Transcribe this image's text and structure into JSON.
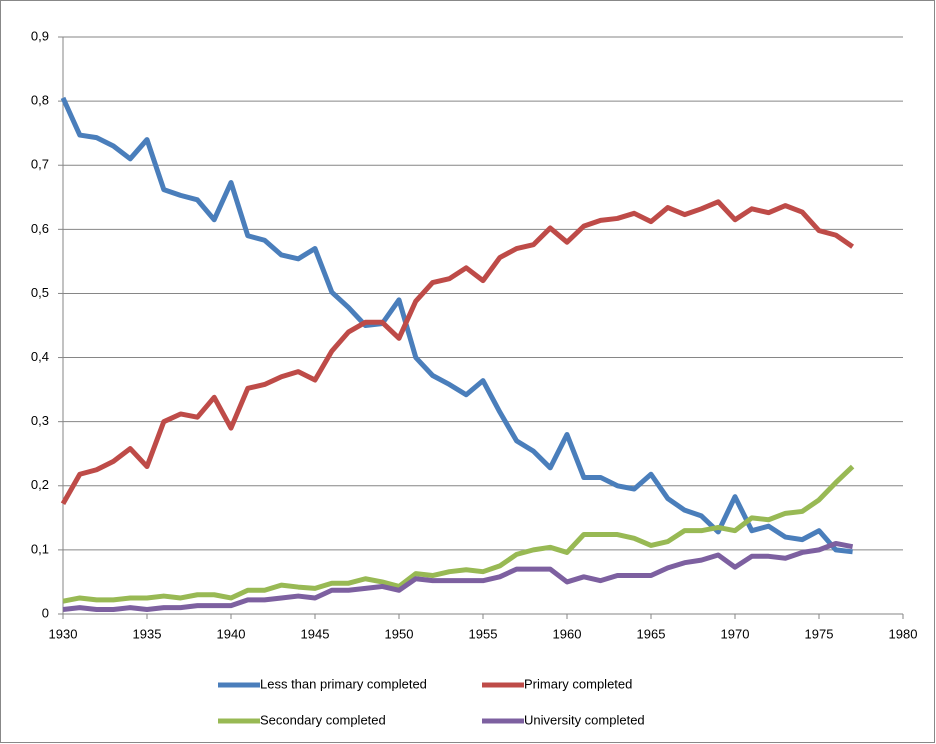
{
  "chart_data": {
    "type": "line",
    "x": [
      1930,
      1931,
      1932,
      1933,
      1934,
      1935,
      1936,
      1937,
      1938,
      1939,
      1940,
      1941,
      1942,
      1943,
      1944,
      1945,
      1946,
      1947,
      1948,
      1949,
      1950,
      1951,
      1952,
      1953,
      1954,
      1955,
      1956,
      1957,
      1958,
      1959,
      1960,
      1961,
      1962,
      1963,
      1964,
      1965,
      1966,
      1967,
      1968,
      1969,
      1970,
      1971,
      1972,
      1973,
      1974,
      1975,
      1976,
      1977
    ],
    "series": [
      {
        "name": "Less than primary completed",
        "color": "#4a7ebb",
        "values": [
          0.805,
          0.747,
          0.743,
          0.73,
          0.71,
          0.74,
          0.662,
          0.653,
          0.646,
          0.615,
          0.673,
          0.59,
          0.583,
          0.56,
          0.554,
          0.57,
          0.502,
          0.478,
          0.45,
          0.453,
          0.49,
          0.4,
          0.372,
          0.358,
          0.342,
          0.364,
          0.315,
          0.27,
          0.254,
          0.228,
          0.28,
          0.213,
          0.213,
          0.2,
          0.195,
          0.218,
          0.18,
          0.162,
          0.153,
          0.128,
          0.183,
          0.13,
          0.137,
          0.12,
          0.116,
          0.13,
          0.1,
          0.097
        ]
      },
      {
        "name": "Primary completed",
        "color": "#be4b48",
        "values": [
          0.172,
          0.218,
          0.225,
          0.238,
          0.258,
          0.23,
          0.3,
          0.312,
          0.307,
          0.338,
          0.29,
          0.352,
          0.358,
          0.37,
          0.378,
          0.365,
          0.41,
          0.44,
          0.455,
          0.455,
          0.43,
          0.488,
          0.517,
          0.523,
          0.54,
          0.52,
          0.556,
          0.57,
          0.576,
          0.602,
          0.58,
          0.605,
          0.614,
          0.617,
          0.625,
          0.612,
          0.634,
          0.623,
          0.632,
          0.643,
          0.615,
          0.632,
          0.626,
          0.637,
          0.627,
          0.598,
          0.591,
          0.573
        ]
      },
      {
        "name": "Secondary completed",
        "color": "#98b954",
        "values": [
          0.02,
          0.025,
          0.022,
          0.022,
          0.025,
          0.025,
          0.028,
          0.025,
          0.03,
          0.03,
          0.025,
          0.037,
          0.037,
          0.045,
          0.042,
          0.04,
          0.048,
          0.048,
          0.055,
          0.05,
          0.043,
          0.063,
          0.06,
          0.066,
          0.069,
          0.066,
          0.075,
          0.093,
          0.1,
          0.104,
          0.096,
          0.124,
          0.124,
          0.124,
          0.118,
          0.107,
          0.113,
          0.13,
          0.13,
          0.135,
          0.13,
          0.15,
          0.147,
          0.157,
          0.16,
          0.178,
          0.205,
          0.23
        ]
      },
      {
        "name": "University completed",
        "color": "#7d60a0",
        "values": [
          0.007,
          0.01,
          0.007,
          0.007,
          0.01,
          0.007,
          0.01,
          0.01,
          0.013,
          0.013,
          0.013,
          0.022,
          0.022,
          0.025,
          0.028,
          0.025,
          0.037,
          0.037,
          0.04,
          0.043,
          0.037,
          0.055,
          0.052,
          0.052,
          0.052,
          0.052,
          0.058,
          0.07,
          0.07,
          0.07,
          0.05,
          0.058,
          0.052,
          0.06,
          0.06,
          0.06,
          0.072,
          0.08,
          0.084,
          0.092,
          0.073,
          0.09,
          0.09,
          0.087,
          0.096,
          0.1,
          0.11,
          0.105
        ]
      }
    ],
    "xlim": [
      1930,
      1980
    ],
    "xticks": [
      1930,
      1935,
      1940,
      1945,
      1950,
      1955,
      1960,
      1965,
      1970,
      1975,
      1980
    ],
    "ylim": [
      0,
      0.9
    ],
    "yticks": [
      0,
      {
        "value": 0.1,
        "label": "0,1"
      },
      {
        "value": 0.2,
        "label": "0,2"
      },
      {
        "value": 0.3,
        "label": "0,3"
      },
      {
        "value": 0.4,
        "label": "0,4"
      },
      {
        "value": 0.5,
        "label": "0,5"
      },
      {
        "value": 0.6,
        "label": "0,6"
      },
      {
        "value": 0.7,
        "label": "0,7"
      },
      {
        "value": 0.8,
        "label": "0,8"
      },
      {
        "value": 0.9,
        "label": "0,9"
      }
    ],
    "grid": true,
    "legend": "bottom"
  }
}
